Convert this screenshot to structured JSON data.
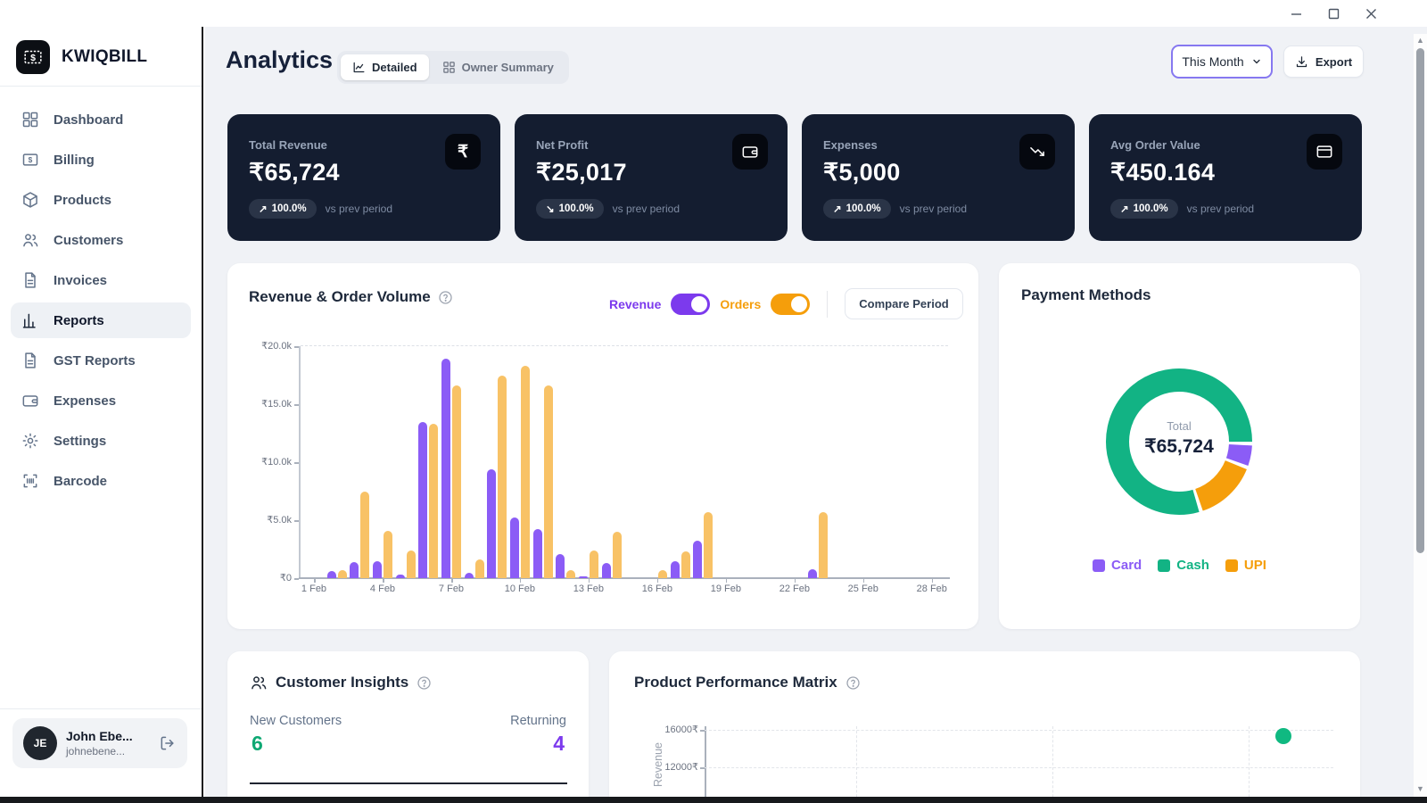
{
  "titlebar": {
    "minimize": "minimize",
    "maximize": "maximize",
    "close": "close"
  },
  "sidebar": {
    "brand": "KWIQBILL",
    "items": [
      {
        "label": "Dashboard",
        "icon": "dashboard",
        "active": false
      },
      {
        "label": "Billing",
        "icon": "billing",
        "active": false
      },
      {
        "label": "Products",
        "icon": "products",
        "active": false
      },
      {
        "label": "Customers",
        "icon": "customers",
        "active": false
      },
      {
        "label": "Invoices",
        "icon": "invoices",
        "active": false
      },
      {
        "label": "Reports",
        "icon": "reports",
        "active": true
      },
      {
        "label": "GST Reports",
        "icon": "gst-reports",
        "active": false
      },
      {
        "label": "Expenses",
        "icon": "expenses",
        "active": false
      },
      {
        "label": "Settings",
        "icon": "settings",
        "active": false
      },
      {
        "label": "Barcode",
        "icon": "barcode",
        "active": false
      }
    ],
    "user": {
      "initials": "JE",
      "name": "John Ebe...",
      "email": "johnebene..."
    }
  },
  "header": {
    "title": "Analytics",
    "tabs": [
      {
        "label": "Detailed",
        "active": true
      },
      {
        "label": "Owner Summary",
        "active": false
      }
    ],
    "period_value": "This Month",
    "export_label": "Export"
  },
  "kpis": [
    {
      "label": "Total Revenue",
      "value": "₹65,724",
      "arrow": "↗",
      "change": "100.0%",
      "note": "vs prev period",
      "icon": "rupee"
    },
    {
      "label": "Net Profit",
      "value": "₹25,017",
      "arrow": "↘",
      "change": "100.0%",
      "note": "vs prev period",
      "icon": "wallet"
    },
    {
      "label": "Expenses",
      "value": "₹5,000",
      "arrow": "↗",
      "change": "100.0%",
      "note": "vs prev period",
      "icon": "trend-down"
    },
    {
      "label": "Avg Order Value",
      "value": "₹450.164",
      "arrow": "↗",
      "change": "100.0%",
      "note": "vs prev period",
      "icon": "credit-card"
    }
  ],
  "revenue_section": {
    "title": "Revenue & Order Volume",
    "revenue_toggle": "Revenue",
    "orders_toggle": "Orders",
    "compare_label": "Compare Period",
    "revenue_color": "#7c3aed",
    "orders_color": "#f59e0b"
  },
  "payment_section": {
    "title": "Payment Methods",
    "center_label": "Total",
    "center_value": "₹65,724",
    "legend": [
      {
        "label": "Card",
        "color": "#8b5cf6"
      },
      {
        "label": "Cash",
        "color": "#12b384"
      },
      {
        "label": "UPI",
        "color": "#f59e0b"
      }
    ]
  },
  "insights": {
    "title": "Customer Insights",
    "new_label": "New Customers",
    "new_value": "6",
    "new_color": "#0ea873",
    "returning_label": "Returning",
    "returning_value": "4",
    "returning_color": "#7c3aed"
  },
  "matrix": {
    "title": "Product Performance Matrix",
    "ylabel": "Revenue"
  },
  "chart_data": [
    {
      "type": "bar",
      "title": "Revenue & Order Volume",
      "days": 28,
      "xticks": [
        "1 Feb",
        "4 Feb",
        "7 Feb",
        "10 Feb",
        "13 Feb",
        "16 Feb",
        "19 Feb",
        "22 Feb",
        "25 Feb",
        "28 Feb"
      ],
      "yticks": [
        "₹0",
        "₹5.0k",
        "₹10.0k",
        "₹15.0k",
        "₹20.0k"
      ],
      "ylim": [
        0,
        20000
      ],
      "series": [
        {
          "name": "Revenue",
          "color": "#8b5cf6",
          "values": [
            0,
            600,
            1400,
            1500,
            300,
            13500,
            18900,
            500,
            9400,
            5200,
            4200,
            2100,
            100,
            1300,
            0,
            0,
            1500,
            3200,
            0,
            0,
            0,
            0,
            800,
            0,
            0,
            0,
            0,
            0
          ]
        },
        {
          "name": "Orders",
          "color": "#f8c266",
          "values": [
            0,
            700,
            7500,
            4100,
            2400,
            13300,
            16600,
            1600,
            17500,
            18300,
            16600,
            700,
            2400,
            4000,
            0,
            700,
            2300,
            5700,
            0,
            0,
            0,
            0,
            5700,
            0,
            0,
            0,
            0,
            0
          ]
        }
      ]
    },
    {
      "type": "pie",
      "title": "Payment Methods",
      "total_label": "Total",
      "total_value": "₹65,724",
      "segments": [
        {
          "label": "Cash",
          "pct": 81.5,
          "color": "#12b384"
        },
        {
          "label": "Card",
          "pct": 4.6,
          "color": "#8b5cf6"
        },
        {
          "label": "UPI",
          "pct": 13.9,
          "color": "#f59e0b"
        }
      ]
    },
    {
      "type": "scatter",
      "title": "Product Performance Matrix",
      "ylabel": "Revenue",
      "yticks": [
        {
          "label": "16000₹",
          "value": 16000
        },
        {
          "label": "12000₹",
          "value": 12000
        }
      ],
      "points": [
        {
          "x_frac": 0.92,
          "revenue": 15300,
          "color": "#10b981"
        }
      ]
    }
  ]
}
